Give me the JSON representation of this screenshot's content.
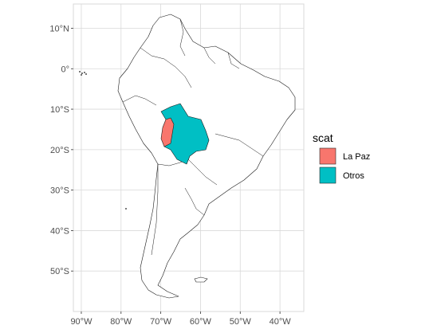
{
  "map": {
    "type": "choropleth",
    "projection": "longitude-latitude",
    "xlim": [
      -92,
      -34
    ],
    "ylim": [
      -60,
      16
    ],
    "x_ticks": [
      {
        "value": -90,
        "label": "90°W"
      },
      {
        "value": -80,
        "label": "80°W"
      },
      {
        "value": -70,
        "label": "70°W"
      },
      {
        "value": -60,
        "label": "60°W"
      },
      {
        "value": -50,
        "label": "50°W"
      },
      {
        "value": -40,
        "label": "40°W"
      }
    ],
    "y_ticks": [
      {
        "value": 10,
        "label": "10°N"
      },
      {
        "value": 0,
        "label": "0°"
      },
      {
        "value": -10,
        "label": "10°S"
      },
      {
        "value": -20,
        "label": "20°S"
      },
      {
        "value": -30,
        "label": "30°S"
      },
      {
        "value": -40,
        "label": "40°S"
      },
      {
        "value": -50,
        "label": "50°S"
      }
    ],
    "grid": true
  },
  "legend": {
    "title": "scat",
    "position": "right",
    "items": [
      {
        "label": "La Paz",
        "color": "#F8766D"
      },
      {
        "label": "Otros",
        "color": "#00BFC4"
      }
    ]
  },
  "colors": {
    "land_fill": "#ffffff",
    "land_stroke": "#1a1a1a",
    "grid": "#d9d9d9",
    "highlight": "#F8766D",
    "other": "#00BFC4"
  }
}
